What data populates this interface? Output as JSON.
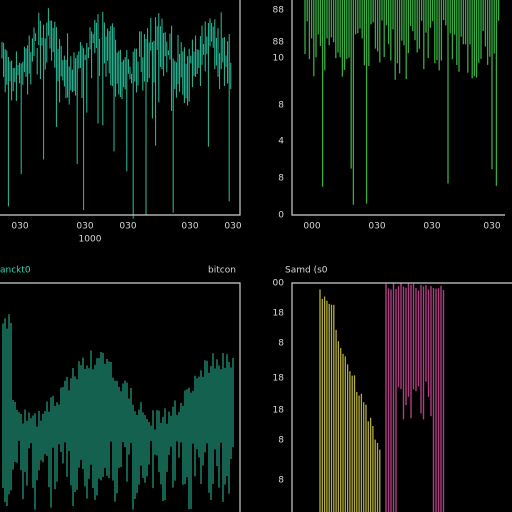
{
  "panels": [
    {
      "x_labels": [
        "030",
        "030",
        "030",
        "030",
        "030"
      ],
      "x_sublabel": "1000"
    },
    {
      "y_labels": [
        "88",
        "88",
        "10",
        "8",
        "4",
        "8",
        "0"
      ],
      "x_labels": [
        "000",
        "030",
        "030",
        "030"
      ]
    },
    {
      "title": "anckt0",
      "side_label": "bitcon"
    },
    {
      "title": "Samd (s0",
      "y_labels": [
        "00",
        "18",
        "8",
        "18",
        "18",
        "8",
        "8"
      ]
    }
  ]
}
